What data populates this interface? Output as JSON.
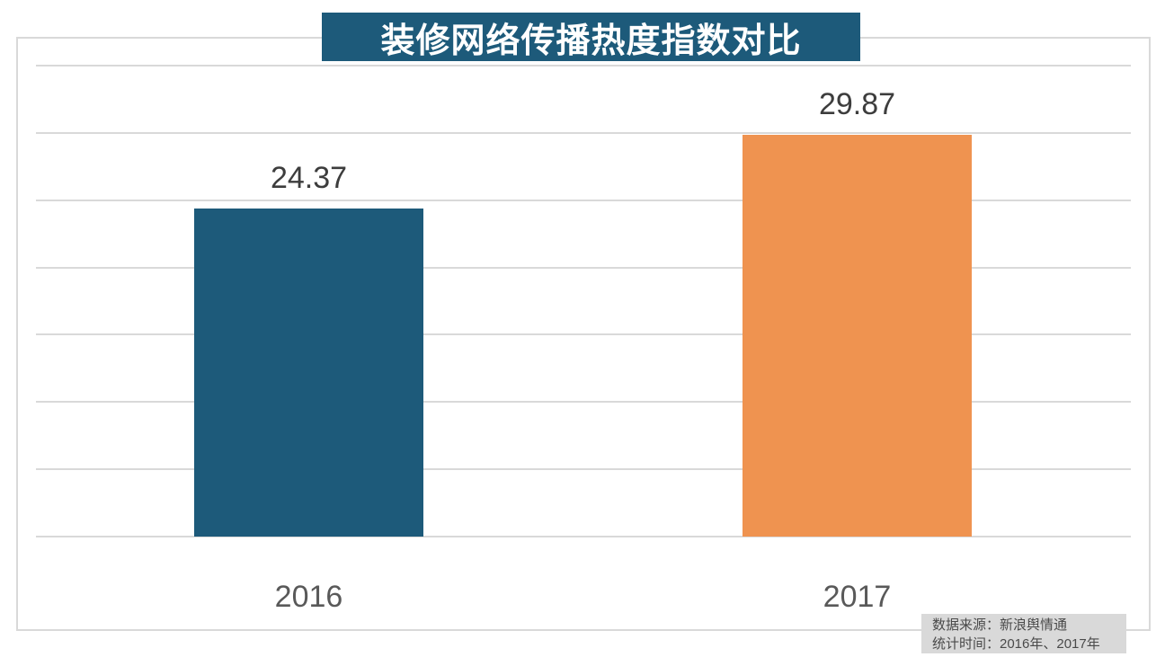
{
  "title": {
    "text": "装修网络传播热度指数对比",
    "bg_color": "#1d5a7a",
    "text_color": "#ffffff"
  },
  "chart_data": {
    "type": "bar",
    "title": "装修网络传播热度指数对比",
    "categories": [
      "2016",
      "2017"
    ],
    "values": [
      24.37,
      29.87
    ],
    "value_labels": [
      "24.37",
      "29.87"
    ],
    "bar_colors": [
      "#1d5a7a",
      "#ef9350"
    ],
    "xlabel": "",
    "ylabel": "",
    "ylim": [
      0,
      35
    ],
    "grid_step": 5,
    "grid": true,
    "grid_color": "#d9d9d9",
    "legend": "none",
    "y_axis_labels_visible": false
  },
  "source_note": {
    "line1": "数据来源：新浪舆情通",
    "line2": "统计时间：2016年、2017年",
    "bg_color": "#d9d9d9",
    "text_color": "#4a4a4a"
  }
}
